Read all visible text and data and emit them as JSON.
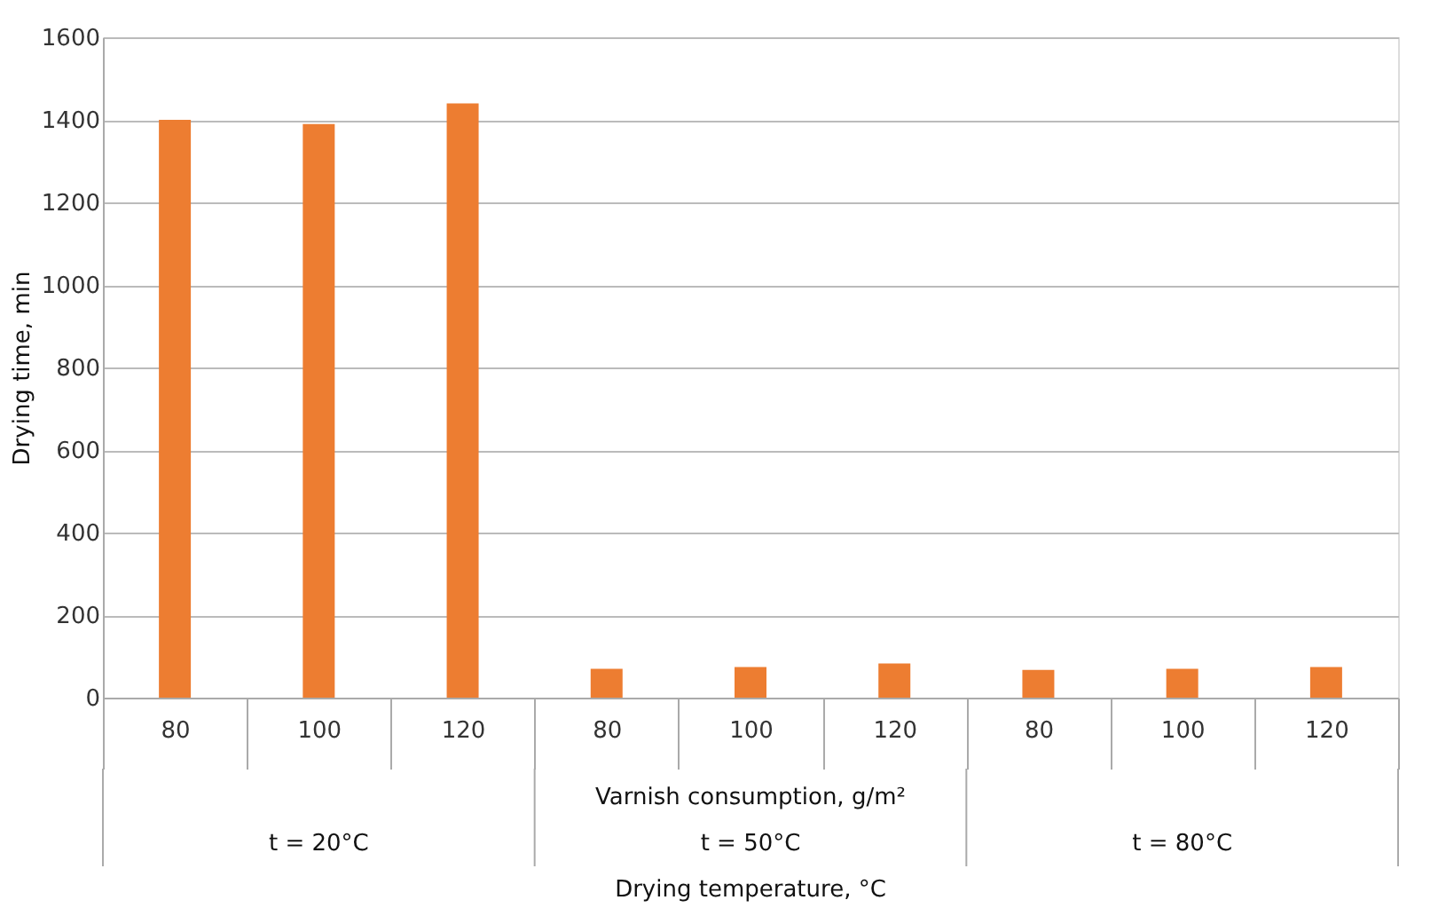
{
  "chart_data": {
    "type": "bar",
    "ylabel": "Drying time, min",
    "categories": [
      "80",
      "100",
      "120",
      "80",
      "100",
      "120",
      "80",
      "100",
      "120"
    ],
    "values": [
      1400,
      1390,
      1440,
      70,
      74,
      83,
      67,
      70,
      74
    ],
    "color": "#ed7d31",
    "ylim": [
      0,
      1600
    ],
    "yticks": [
      0,
      200,
      400,
      600,
      800,
      1000,
      1200,
      1400,
      1600
    ],
    "grid": "y",
    "annotations": [
      "t = 20°C",
      "t = 50°C",
      "t = 80°C",
      "Varnish consumption, g/m²",
      "Drying temperature, °C"
    ]
  }
}
